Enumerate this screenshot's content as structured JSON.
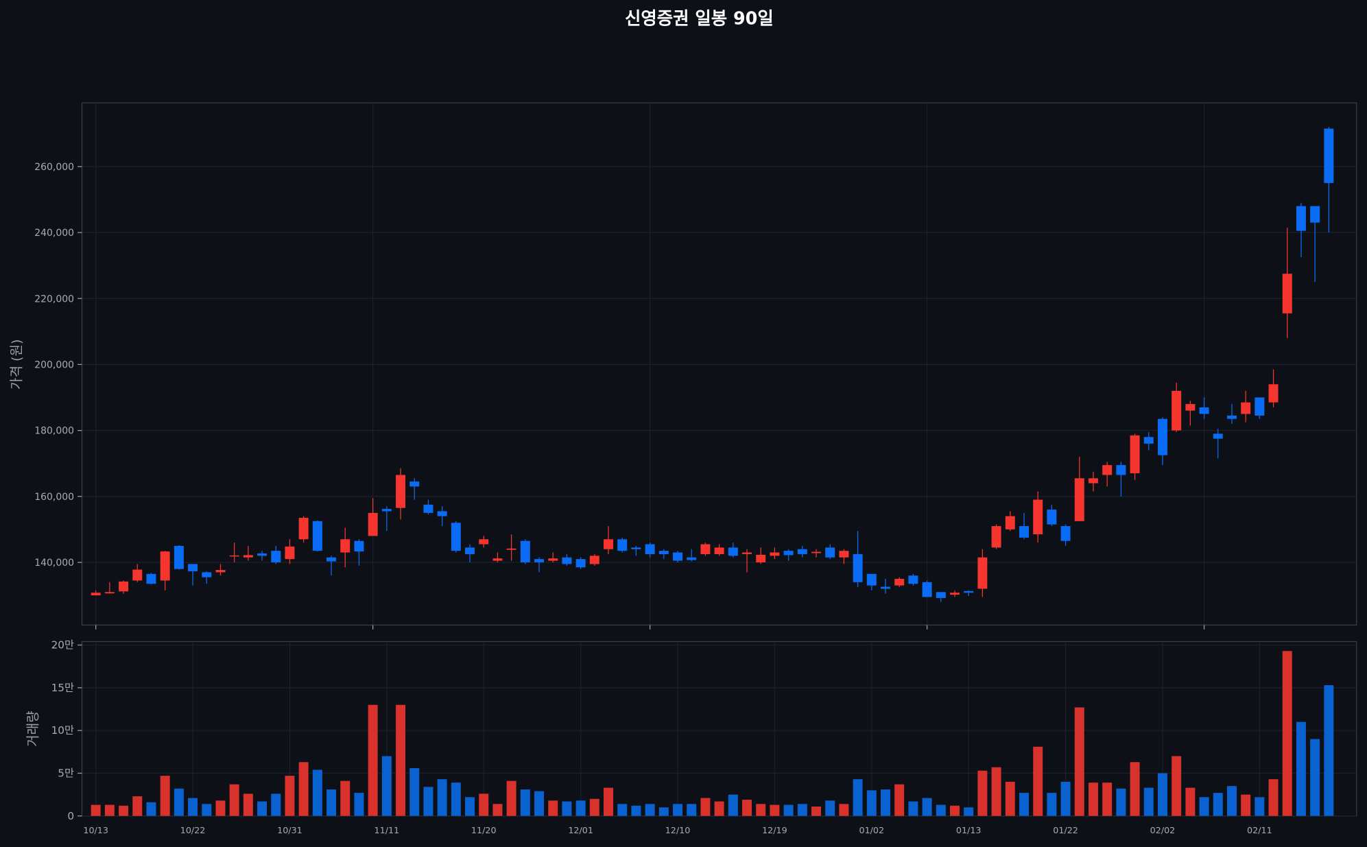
{
  "chart_data": [
    {
      "type": "candlestick",
      "title": "신영증권 일봉 90일",
      "ylabel": "가격 (원)",
      "up_color": "#f5352e",
      "down_color": "#0a6cf5",
      "grid": true,
      "xlim": [
        -1,
        91
      ],
      "xticks": [
        0,
        20,
        40,
        60,
        80
      ],
      "ylim": [
        121000,
        279300
      ],
      "yticks": [
        {
          "value": 140000,
          "label": "140,000"
        },
        {
          "value": 160000,
          "label": "160,000"
        },
        {
          "value": 180000,
          "label": "180,000"
        },
        {
          "value": 200000,
          "label": "200,000"
        },
        {
          "value": 220000,
          "label": "220,000"
        },
        {
          "value": 240000,
          "label": "240,000"
        },
        {
          "value": 260000,
          "label": "260,000"
        }
      ],
      "open": [
        130000,
        130600,
        131200,
        134500,
        136500,
        134500,
        145000,
        139500,
        137000,
        137000,
        141800,
        141500,
        142700,
        143500,
        141000,
        147000,
        152500,
        141500,
        143000,
        146500,
        148000,
        156200,
        156500,
        164500,
        157500,
        155500,
        152000,
        144500,
        145500,
        140500,
        143800,
        146500,
        141000,
        140500,
        141500,
        141000,
        139500,
        144000,
        147000,
        144500,
        145500,
        143500,
        143000,
        141500,
        142500,
        142500,
        144500,
        142500,
        140000,
        142000,
        143500,
        144000,
        142800,
        144500,
        141500,
        142500,
        136500,
        132600,
        133000,
        136000,
        134000,
        131000,
        130200,
        131300,
        132000,
        144500,
        150000,
        151000,
        148500,
        156000,
        151000,
        152500,
        164000,
        166500,
        169500,
        167000,
        178000,
        183500,
        180000,
        186000,
        187000,
        179000,
        184500,
        185000,
        190000,
        188500,
        215500,
        248000,
        248000,
        271500
      ],
      "high": [
        131500,
        134000,
        134500,
        139500,
        136800,
        143500,
        145200,
        139500,
        137300,
        139500,
        146000,
        145000,
        143500,
        145000,
        147000,
        154000,
        152700,
        142000,
        150500,
        147000,
        159500,
        157000,
        168500,
        165500,
        159000,
        157000,
        152500,
        145500,
        148000,
        143000,
        148500,
        147000,
        141500,
        143000,
        142500,
        141500,
        142500,
        151000,
        147500,
        145000,
        146000,
        144000,
        143500,
        144000,
        146000,
        145500,
        146000,
        144000,
        144500,
        144500,
        144000,
        145000,
        144000,
        145500,
        144000,
        149500,
        136500,
        135000,
        135500,
        136500,
        134500,
        131000,
        131500,
        131500,
        144000,
        151500,
        155500,
        155000,
        161500,
        157500,
        151500,
        172000,
        167500,
        170500,
        170500,
        179000,
        179500,
        184000,
        194500,
        189000,
        190000,
        180500,
        188000,
        192000,
        190000,
        198500,
        241500,
        249000,
        248000,
        272000
      ],
      "low": [
        130000,
        130500,
        130500,
        134000,
        133300,
        131500,
        137800,
        133000,
        133500,
        136000,
        140000,
        140500,
        140500,
        139500,
        139500,
        146000,
        143300,
        136000,
        138500,
        139000,
        148000,
        149500,
        153000,
        159000,
        154500,
        151000,
        143000,
        140000,
        144500,
        140000,
        140500,
        139500,
        137000,
        140000,
        139000,
        138000,
        139000,
        142500,
        143000,
        142000,
        141500,
        141000,
        140000,
        140300,
        142000,
        142000,
        141500,
        137000,
        139500,
        141000,
        140500,
        141500,
        141500,
        141000,
        139500,
        132500,
        131500,
        130500,
        132500,
        133000,
        129500,
        128000,
        129500,
        129800,
        129500,
        144000,
        149500,
        147000,
        146000,
        151000,
        145000,
        152500,
        161500,
        163000,
        160000,
        165000,
        174000,
        169500,
        179500,
        181500,
        183500,
        171500,
        182000,
        182500,
        183500,
        187000,
        208000,
        232500,
        225000,
        240000
      ],
      "close": [
        130800,
        131000,
        134200,
        137800,
        133500,
        143300,
        138000,
        137300,
        135500,
        137700,
        142100,
        142200,
        142000,
        140000,
        144800,
        153500,
        143500,
        140300,
        147000,
        143300,
        155000,
        155500,
        166500,
        163000,
        155000,
        154000,
        143500,
        142500,
        147000,
        141200,
        144200,
        140000,
        140000,
        141200,
        139500,
        138500,
        142000,
        147000,
        143500,
        144000,
        142500,
        142500,
        140500,
        140700,
        145500,
        144500,
        142000,
        143000,
        142300,
        143000,
        142200,
        142500,
        143200,
        141500,
        143500,
        134000,
        133000,
        132000,
        135000,
        133500,
        129500,
        129200,
        130800,
        130800,
        141500,
        151000,
        154000,
        147500,
        159000,
        151500,
        146500,
        165500,
        165500,
        169500,
        166500,
        178500,
        176000,
        172500,
        192000,
        188000,
        185000,
        177500,
        183500,
        188500,
        184500,
        194000,
        227500,
        240500,
        243000,
        255000
      ]
    },
    {
      "type": "bar",
      "ylabel": "거래량",
      "up_color": "#d9312b",
      "down_color": "#0a62d0",
      "grid": true,
      "xlim": [
        -1,
        91
      ],
      "ylim": [
        0,
        204000
      ],
      "yticks": [
        0,
        {
          "value": 50000,
          "label": "5만"
        },
        {
          "value": 100000,
          "label": "10만"
        },
        {
          "value": 150000,
          "label": "15만"
        },
        {
          "value": 200000,
          "label": "20만"
        }
      ],
      "categories": [
        "10/13",
        null,
        null,
        null,
        null,
        null,
        null,
        "10/22",
        null,
        null,
        null,
        null,
        null,
        null,
        "10/31",
        null,
        null,
        null,
        null,
        null,
        null,
        "11/11",
        null,
        null,
        null,
        null,
        null,
        null,
        "11/20",
        null,
        null,
        null,
        null,
        null,
        null,
        "12/01",
        null,
        null,
        null,
        null,
        null,
        null,
        "12/10",
        null,
        null,
        null,
        null,
        null,
        null,
        "12/19",
        null,
        null,
        null,
        null,
        null,
        null,
        "01/02",
        null,
        null,
        null,
        null,
        null,
        null,
        "01/13",
        null,
        null,
        null,
        null,
        null,
        null,
        "01/22",
        null,
        null,
        null,
        null,
        null,
        null,
        "02/02",
        null,
        null,
        null,
        null,
        null,
        null,
        "02/11",
        null,
        null,
        null,
        null,
        null
      ],
      "values": [
        13000,
        13000,
        12000,
        23000,
        16000,
        47000,
        32000,
        21000,
        14000,
        18000,
        37000,
        26000,
        17000,
        26000,
        47000,
        63000,
        54000,
        31000,
        41000,
        27000,
        130000,
        70000,
        130000,
        56000,
        34000,
        43000,
        39000,
        22000,
        26000,
        14000,
        41000,
        31000,
        29000,
        18000,
        17000,
        18000,
        20000,
        33000,
        14000,
        12000,
        14000,
        10000,
        14000,
        14000,
        21000,
        17000,
        25000,
        19000,
        14000,
        13000,
        13000,
        14000,
        11000,
        18000,
        14000,
        43000,
        30000,
        31000,
        37000,
        17000,
        21000,
        13000,
        12000,
        10000,
        53000,
        57000,
        40000,
        27000,
        81000,
        27000,
        40000,
        127000,
        39000,
        39000,
        32000,
        63000,
        33000,
        50000,
        70000,
        33000,
        22000,
        27000,
        35000,
        25000,
        22000,
        43000,
        193000,
        110000,
        90000,
        153000
      ]
    }
  ]
}
